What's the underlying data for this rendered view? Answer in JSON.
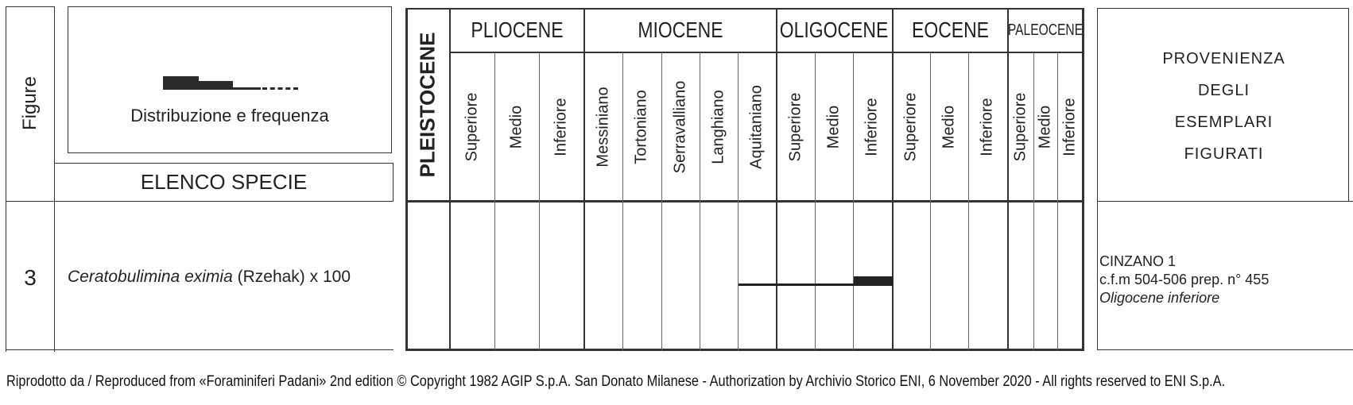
{
  "header": {
    "figure_label": "Figure",
    "distribution_label": "Distribuzione e frequenza",
    "species_list_label": "ELENCO SPECIE",
    "provenance_lines": [
      "PROVENIENZA",
      "DEGLI",
      "ESEMPLARI",
      "FIGURATI"
    ]
  },
  "epochs": {
    "pleistocene": "PLEISTOCENE",
    "pliocene": "PLIOCENE",
    "miocene": "MIOCENE",
    "oligocene": "OLIGOCENE",
    "eocene": "EOCENE",
    "paleocene": "PALEOCENE"
  },
  "subdivisions": {
    "pliocene": [
      "Superiore",
      "Medio",
      "Inferiore"
    ],
    "miocene": [
      "Messiniano",
      "Tortoniano",
      "Serravalliano",
      "Langhiano",
      "Aquitaniano"
    ],
    "oligocene": [
      "Superiore",
      "Medio",
      "Inferiore"
    ],
    "eocene": [
      "Superiore",
      "Medio",
      "Inferiore"
    ],
    "paleocene": [
      "Superiore",
      "Medio",
      "Inferiore"
    ]
  },
  "entry": {
    "figure_number": "3",
    "species_name": "Ceratobulimina eximia",
    "author": " (Rzehak) x 100",
    "provenance_well": "CINZANO 1",
    "provenance_sample": "c.f.m 504-506 prep. n° 455",
    "provenance_age": "Oligocene inferiore",
    "range": {
      "from": "Aquitaniano",
      "to": "Oligocene Inferiore",
      "frequency_levels": [
        "rare (thin line)",
        "common (thick bar)"
      ],
      "thick_segment": "Oligocene Inferiore"
    }
  },
  "legend": {
    "symbol_levels": [
      "abundant",
      "common",
      "rare",
      "very rare (dashed)"
    ]
  },
  "footer": {
    "credit": "Riprodotto da / Reproduced from «Foraminiferi Padani» 2nd edition © Copyright 1982 AGIP S.p.A. San Donato Milanese - Authorization by Archivio Storico ENI, 6 November 2020 - All rights reserved to ENI S.p.A."
  },
  "colors": {
    "ink": "#222222",
    "line": "#333333",
    "background": "#ffffff"
  }
}
